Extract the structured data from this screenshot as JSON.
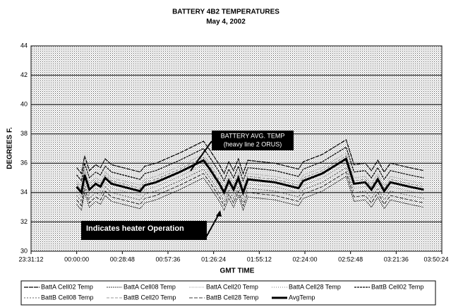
{
  "chart_data": {
    "type": "line",
    "title": "BATTERY 4B2 TEMPERATURES",
    "subtitle": "May 4, 2002",
    "x_label": "GMT TIME",
    "y_label": "DEGREES F.",
    "x": [
      0,
      3,
      5,
      8,
      12,
      15,
      18,
      22,
      40,
      43,
      50,
      65,
      80,
      84,
      90,
      93,
      96,
      99,
      102,
      105,
      108,
      125,
      140,
      143,
      155,
      170,
      175,
      182,
      186,
      190,
      194,
      198,
      210,
      219
    ],
    "xlim": [
      -28.8,
      230.4
    ],
    "xticks": [
      {
        "value": -28.8,
        "label": "23:31:12"
      },
      {
        "value": 0,
        "label": "00:00:00"
      },
      {
        "value": 28.8,
        "label": "00:28:48"
      },
      {
        "value": 57.6,
        "label": "00:57:36"
      },
      {
        "value": 86.4,
        "label": "01:26:24"
      },
      {
        "value": 115.2,
        "label": "01:55:12"
      },
      {
        "value": 144,
        "label": "02:24:00"
      },
      {
        "value": 172.8,
        "label": "02:52:48"
      },
      {
        "value": 201.6,
        "label": "03:21:36"
      },
      {
        "value": 230.4,
        "label": "03:50:24"
      }
    ],
    "ylim": [
      30,
      44
    ],
    "yticks": [
      30,
      32,
      34,
      36,
      38,
      40,
      42,
      44
    ],
    "grid": true,
    "legend": "bottom",
    "series": [
      {
        "name": "BattA Cell02 Temp",
        "color": "#000000",
        "width": 1.2,
        "dash": "6,1",
        "values": [
          35.7,
          35.3,
          36.5,
          35.5,
          35.9,
          35.7,
          36.3,
          35.9,
          35.4,
          35.8,
          36.0,
          36.7,
          37.5,
          36.9,
          35.9,
          35.3,
          36.1,
          35.5,
          36.3,
          35.3,
          36.2,
          36.0,
          35.6,
          36.1,
          36.6,
          37.6,
          35.9,
          36.0,
          35.5,
          36.2,
          35.4,
          36.0,
          35.7,
          35.5
        ]
      },
      {
        "name": "BattA Cell08 Temp",
        "color": "#000000",
        "width": 0.8,
        "dash": "2,1",
        "values": [
          33.2,
          32.8,
          34.0,
          33.0,
          33.4,
          33.2,
          33.8,
          33.4,
          32.9,
          33.3,
          33.5,
          34.2,
          35.0,
          34.4,
          33.4,
          32.8,
          33.6,
          33.0,
          33.8,
          32.8,
          33.7,
          33.5,
          33.1,
          33.6,
          34.1,
          35.1,
          33.4,
          33.5,
          33.0,
          33.7,
          32.9,
          33.5,
          33.2,
          33.0
        ]
      },
      {
        "name": "BattA Cell20 Temp",
        "color": "#888888",
        "width": 0.8,
        "dash": "1,1",
        "values": [
          34.8,
          34.4,
          35.6,
          34.6,
          35.0,
          34.8,
          35.4,
          35.0,
          34.5,
          34.9,
          35.1,
          35.8,
          36.6,
          36.0,
          35.0,
          34.4,
          35.2,
          34.6,
          35.4,
          34.4,
          35.3,
          35.1,
          34.7,
          35.2,
          35.7,
          36.7,
          35.0,
          35.1,
          34.6,
          35.3,
          34.5,
          35.1,
          34.8,
          34.6
        ]
      },
      {
        "name": "BattA Cell28 Temp",
        "color": "#555555",
        "width": 0.8,
        "dash": "1,2",
        "values": [
          34.1,
          33.7,
          34.9,
          33.9,
          34.3,
          34.1,
          34.7,
          34.3,
          33.8,
          34.2,
          34.4,
          35.1,
          35.9,
          35.3,
          34.3,
          33.7,
          34.5,
          33.9,
          34.7,
          33.7,
          34.6,
          34.4,
          34.0,
          34.5,
          35.0,
          36.0,
          34.3,
          34.4,
          33.9,
          34.6,
          33.8,
          34.4,
          34.1,
          33.9
        ]
      },
      {
        "name": "BattB Cell02 Temp",
        "color": "#000000",
        "width": 1.2,
        "dash": "3,1",
        "values": [
          35.2,
          34.8,
          36.0,
          35.0,
          35.4,
          35.2,
          35.8,
          35.4,
          34.9,
          35.3,
          35.5,
          36.2,
          37.0,
          36.4,
          35.4,
          34.8,
          35.6,
          35.0,
          35.8,
          34.8,
          35.7,
          35.5,
          35.1,
          35.6,
          36.1,
          37.1,
          35.4,
          35.5,
          35.0,
          35.7,
          34.9,
          35.5,
          35.2,
          35.0
        ]
      },
      {
        "name": "BattB Cell08 Temp",
        "color": "#333333",
        "width": 0.8,
        "dash": "2,2",
        "values": [
          33.8,
          33.4,
          34.6,
          33.6,
          34.0,
          33.8,
          34.4,
          34.0,
          33.5,
          33.9,
          34.1,
          34.8,
          35.6,
          35.0,
          34.0,
          33.4,
          34.2,
          33.6,
          34.4,
          33.4,
          34.3,
          34.1,
          33.7,
          34.2,
          34.7,
          35.7,
          34.0,
          34.1,
          33.6,
          34.3,
          33.5,
          34.1,
          33.8,
          33.6
        ]
      },
      {
        "name": "BattB Cell20 Temp",
        "color": "#777777",
        "width": 0.8,
        "dash": "4,2",
        "values": [
          34.6,
          34.2,
          35.4,
          34.4,
          34.8,
          34.6,
          35.2,
          34.8,
          34.3,
          34.7,
          34.9,
          35.6,
          36.4,
          35.8,
          34.8,
          34.2,
          35.0,
          34.4,
          35.2,
          34.2,
          35.1,
          34.9,
          34.5,
          35.0,
          35.5,
          36.5,
          34.8,
          34.9,
          34.4,
          35.1,
          34.3,
          34.9,
          34.6,
          34.4
        ]
      },
      {
        "name": "BattB Cell28 Temp",
        "color": "#000000",
        "width": 0.8,
        "dash": "5,2",
        "values": [
          33.5,
          33.1,
          34.3,
          33.3,
          33.7,
          33.5,
          34.1,
          33.7,
          33.2,
          33.6,
          33.8,
          34.5,
          35.3,
          34.7,
          33.7,
          33.1,
          33.9,
          33.3,
          34.1,
          33.1,
          34.0,
          33.8,
          33.4,
          33.9,
          34.4,
          35.4,
          33.7,
          33.8,
          33.3,
          34.0,
          33.2,
          33.8,
          33.5,
          33.3
        ]
      },
      {
        "name": "AvgTemp",
        "color": "#000000",
        "width": 3,
        "dash": "",
        "values": [
          34.4,
          34.0,
          35.2,
          34.2,
          34.6,
          34.4,
          35.0,
          34.6,
          34.1,
          34.5,
          34.7,
          35.4,
          36.2,
          35.6,
          34.6,
          34.0,
          34.8,
          34.2,
          35.0,
          34.0,
          34.9,
          34.7,
          34.3,
          34.8,
          35.3,
          36.3,
          34.6,
          34.7,
          34.2,
          34.9,
          34.1,
          34.7,
          34.4,
          34.2
        ]
      }
    ],
    "annotations": [
      "BATTERY AVG. TEMP",
      "(heavy line 2 ORUS)",
      "Indicates heater Operation"
    ]
  }
}
